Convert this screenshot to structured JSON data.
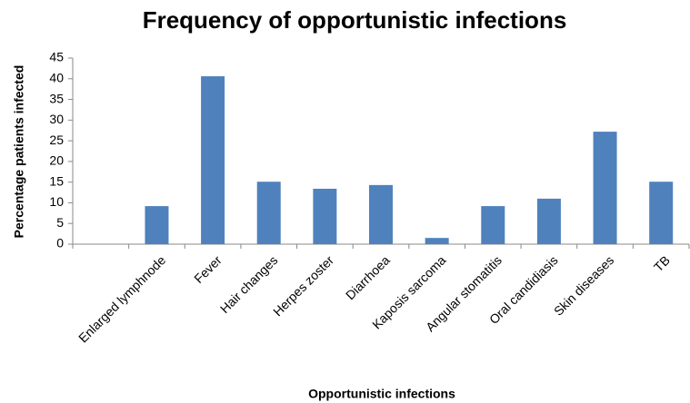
{
  "chart_data": {
    "type": "bar",
    "title": "Frequency of opportunistic infections",
    "x_label": "Opportunistic infections",
    "y_label": "Percentage patients infected",
    "categories": [
      null,
      "Enlarged  lymphnode",
      "Fever",
      "Hair changes",
      "Herpes zoster",
      "Diarrhoea",
      "Kaposis sarcoma",
      "Angular stomatitis",
      "Oral candidiasis",
      "Skin diseases",
      "TB"
    ],
    "values": [
      null,
      9.2,
      40.6,
      15.1,
      13.4,
      14.3,
      1.5,
      9.2,
      11,
      27.2,
      15.1
    ],
    "color": "#4f81bd",
    "ylim": [
      0,
      45
    ],
    "yticks": [
      0,
      5,
      10,
      15,
      20,
      25,
      30,
      35,
      40,
      45
    ],
    "grid": false
  }
}
